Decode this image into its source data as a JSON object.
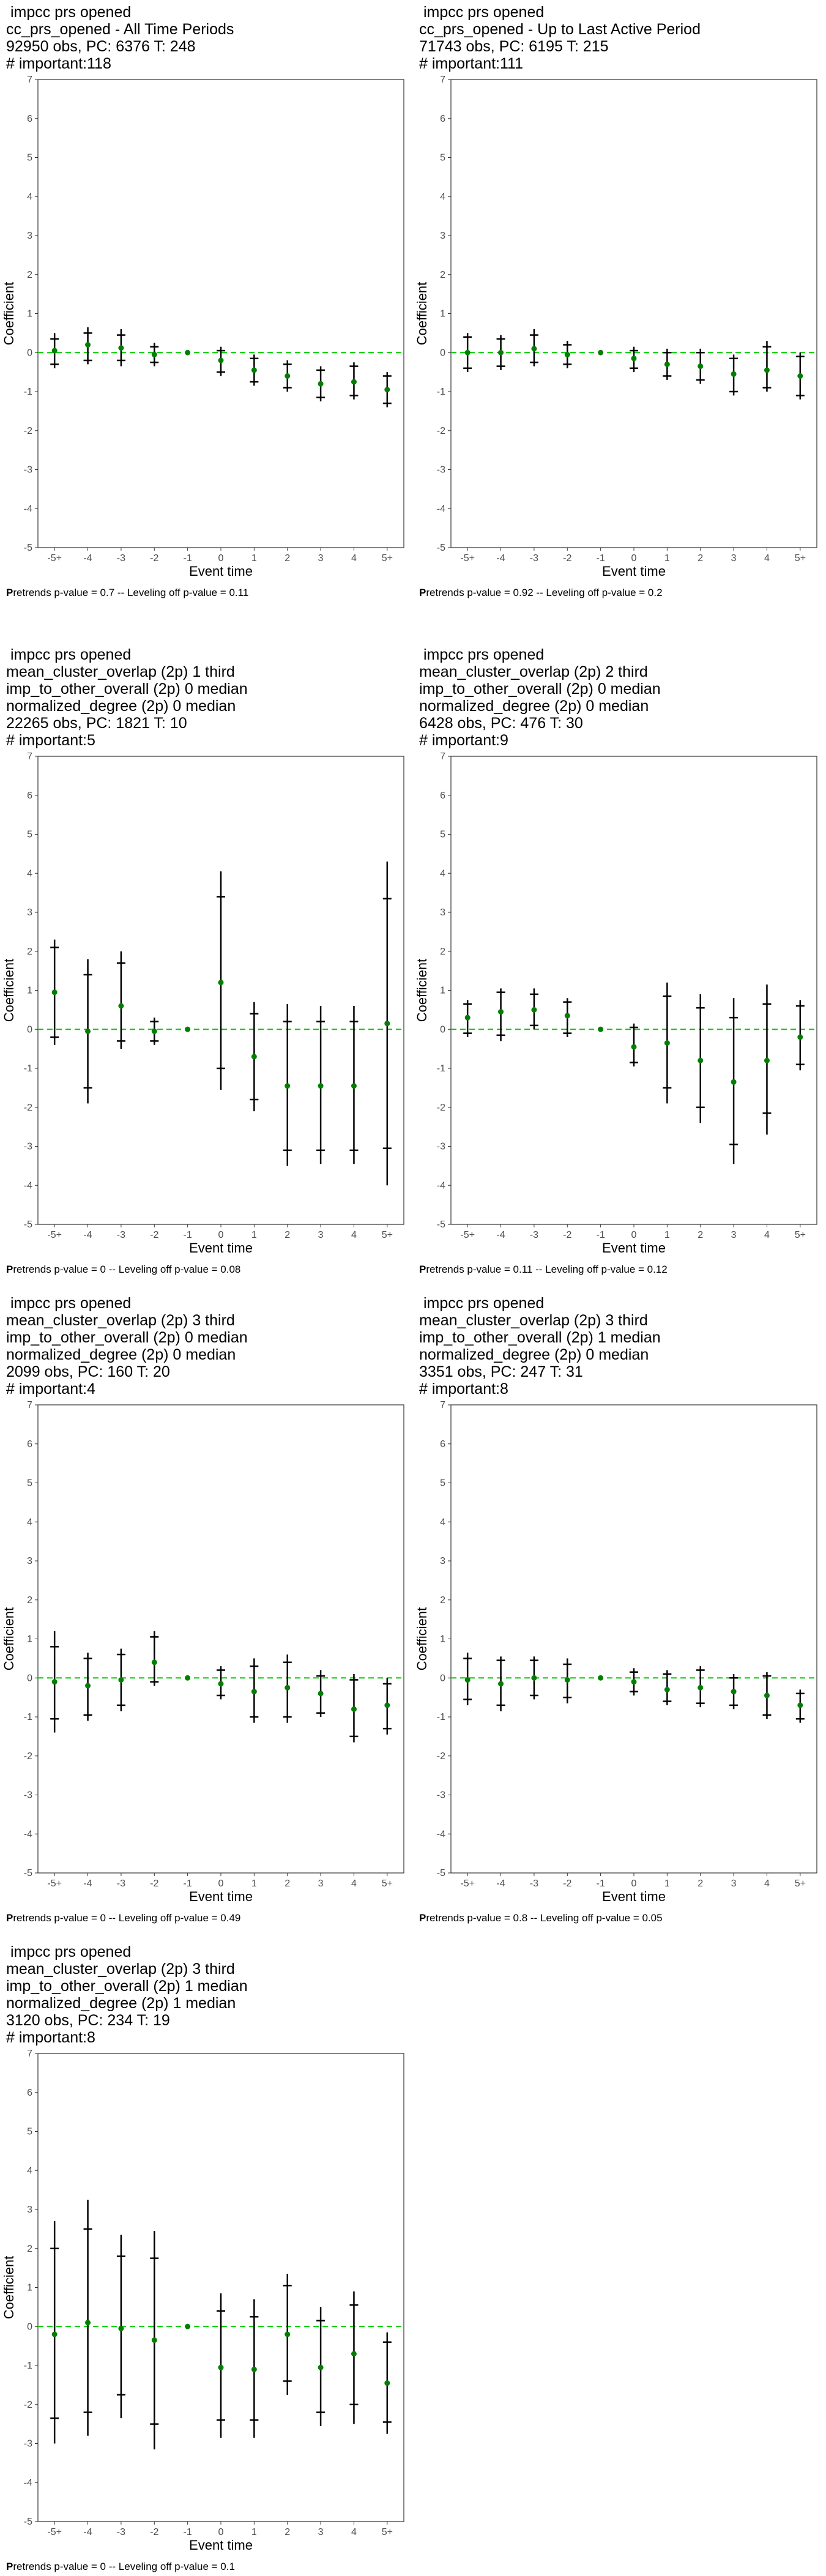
{
  "chart_data": [
    {
      "type": "scatter",
      "title_lines": [
        " impcc prs opened",
        "cc_prs_opened - All Time Periods",
        "92950 obs, PC: 6376 T: 248",
        "# important:118"
      ],
      "xlabel": "Event time",
      "ylabel": "Coefficient",
      "categories": [
        "-5+",
        "-4",
        "-3",
        "-2",
        "-1",
        "0",
        "1",
        "2",
        "3",
        "4",
        "5+"
      ],
      "ylim": [
        -5,
        7
      ],
      "y_ticks": [
        -5,
        -4,
        -3,
        -2,
        -1,
        0,
        1,
        2,
        3,
        4,
        5,
        6,
        7
      ],
      "reference_line": 0,
      "estimates": [
        0.05,
        0.2,
        0.12,
        -0.05,
        0,
        -0.2,
        -0.45,
        -0.6,
        -0.8,
        -0.75,
        -0.95
      ],
      "ci95": [
        [
          -0.4,
          0.5
        ],
        [
          -0.3,
          0.65
        ],
        [
          -0.35,
          0.6
        ],
        [
          -0.35,
          0.25
        ],
        [
          0,
          0
        ],
        [
          -0.6,
          0.15
        ],
        [
          -0.85,
          -0.05
        ],
        [
          -1.0,
          -0.2
        ],
        [
          -1.25,
          -0.35
        ],
        [
          -1.2,
          -0.25
        ],
        [
          -1.4,
          -0.5
        ]
      ],
      "ci90": [
        [
          -0.3,
          0.35
        ],
        [
          -0.2,
          0.5
        ],
        [
          -0.2,
          0.45
        ],
        [
          -0.25,
          0.15
        ],
        [
          0,
          0
        ],
        [
          -0.5,
          0.05
        ],
        [
          -0.75,
          -0.15
        ],
        [
          -0.9,
          -0.3
        ],
        [
          -1.15,
          -0.45
        ],
        [
          -1.1,
          -0.35
        ],
        [
          -1.3,
          -0.6
        ]
      ],
      "caption_prefix": "P",
      "caption_rest": "retrends p-value = 0.7 -- Leveling off p-value = 0.11",
      "colors": {
        "point": "#008000",
        "ref_line": "#00cc00",
        "bar": "#000000"
      }
    },
    {
      "type": "scatter",
      "title_lines": [
        " impcc prs opened",
        "cc_prs_opened - Up to Last Active Period",
        "71743 obs, PC: 6195 T: 215",
        "# important:111"
      ],
      "xlabel": "Event time",
      "ylabel": "Coefficient",
      "categories": [
        "-5+",
        "-4",
        "-3",
        "-2",
        "-1",
        "0",
        "1",
        "2",
        "3",
        "4",
        "5+"
      ],
      "ylim": [
        -5,
        7
      ],
      "y_ticks": [
        -5,
        -4,
        -3,
        -2,
        -1,
        0,
        1,
        2,
        3,
        4,
        5,
        6,
        7
      ],
      "reference_line": 0,
      "estimates": [
        0.0,
        0.0,
        0.1,
        -0.05,
        0,
        -0.15,
        -0.3,
        -0.35,
        -0.55,
        -0.45,
        -0.6
      ],
      "ci95": [
        [
          -0.5,
          0.5
        ],
        [
          -0.45,
          0.45
        ],
        [
          -0.35,
          0.6
        ],
        [
          -0.4,
          0.3
        ],
        [
          0,
          0
        ],
        [
          -0.5,
          0.15
        ],
        [
          -0.7,
          0.1
        ],
        [
          -0.8,
          0.1
        ],
        [
          -1.1,
          -0.05
        ],
        [
          -1.0,
          0.3
        ],
        [
          -1.2,
          0.0
        ]
      ],
      "ci90": [
        [
          -0.4,
          0.4
        ],
        [
          -0.35,
          0.35
        ],
        [
          -0.25,
          0.45
        ],
        [
          -0.3,
          0.2
        ],
        [
          0,
          0
        ],
        [
          -0.4,
          0.05
        ],
        [
          -0.6,
          0.0
        ],
        [
          -0.7,
          0.0
        ],
        [
          -1.0,
          -0.15
        ],
        [
          -0.9,
          0.15
        ],
        [
          -1.1,
          -0.1
        ]
      ],
      "caption_prefix": "P",
      "caption_rest": "retrends p-value = 0.92 -- Leveling off p-value = 0.2",
      "colors": {
        "point": "#008000",
        "ref_line": "#00cc00",
        "bar": "#000000"
      }
    },
    {
      "type": "scatter",
      "title_lines": [
        " impcc prs opened",
        "mean_cluster_overlap (2p) 1 third",
        "imp_to_other_overall (2p) 0 median",
        "normalized_degree (2p) 0 median",
        "22265 obs, PC: 1821 T: 10",
        "# important:5"
      ],
      "xlabel": "Event time",
      "ylabel": "Coefficient",
      "categories": [
        "-5+",
        "-4",
        "-3",
        "-2",
        "-1",
        "0",
        "1",
        "2",
        "3",
        "4",
        "5+"
      ],
      "ylim": [
        -5,
        7
      ],
      "y_ticks": [
        -5,
        -4,
        -3,
        -2,
        -1,
        0,
        1,
        2,
        3,
        4,
        5,
        6,
        7
      ],
      "reference_line": 0,
      "estimates": [
        0.95,
        -0.05,
        0.6,
        -0.05,
        0,
        1.2,
        -0.7,
        -1.45,
        -1.45,
        -1.45,
        0.15
      ],
      "ci95": [
        [
          -0.4,
          2.3
        ],
        [
          -1.9,
          1.8
        ],
        [
          -0.5,
          2.0
        ],
        [
          -0.4,
          0.3
        ],
        [
          0,
          0
        ],
        [
          -1.55,
          4.05
        ],
        [
          -2.1,
          0.7
        ],
        [
          -3.5,
          0.65
        ],
        [
          -3.45,
          0.6
        ],
        [
          -3.45,
          0.6
        ],
        [
          -4.0,
          4.3
        ]
      ],
      "ci90": [
        [
          -0.2,
          2.1
        ],
        [
          -1.5,
          1.4
        ],
        [
          -0.3,
          1.7
        ],
        [
          -0.3,
          0.2
        ],
        [
          0,
          0
        ],
        [
          -1.0,
          3.4
        ],
        [
          -1.8,
          0.4
        ],
        [
          -3.1,
          0.2
        ],
        [
          -3.1,
          0.2
        ],
        [
          -3.1,
          0.2
        ],
        [
          -3.05,
          3.35
        ]
      ],
      "caption_prefix": "P",
      "caption_rest": "retrends p-value = 0 -- Leveling off p-value = 0.08",
      "colors": {
        "point": "#008000",
        "ref_line": "#00cc00",
        "bar": "#000000"
      }
    },
    {
      "type": "scatter",
      "title_lines": [
        " impcc prs opened",
        "mean_cluster_overlap (2p) 2 third",
        "imp_to_other_overall (2p) 0 median",
        "normalized_degree (2p) 0 median",
        "6428 obs, PC: 476 T: 30",
        "# important:9"
      ],
      "xlabel": "Event time",
      "ylabel": "Coefficient",
      "categories": [
        "-5+",
        "-4",
        "-3",
        "-2",
        "-1",
        "0",
        "1",
        "2",
        "3",
        "4",
        "5+"
      ],
      "ylim": [
        -5,
        7
      ],
      "y_ticks": [
        -5,
        -4,
        -3,
        -2,
        -1,
        0,
        1,
        2,
        3,
        4,
        5,
        6,
        7
      ],
      "reference_line": 0,
      "estimates": [
        0.3,
        0.45,
        0.5,
        0.35,
        0,
        -0.45,
        -0.35,
        -0.8,
        -1.35,
        -0.8,
        -0.2
      ],
      "ci95": [
        [
          -0.2,
          0.75
        ],
        [
          -0.3,
          1.05
        ],
        [
          0.0,
          1.05
        ],
        [
          -0.2,
          0.8
        ],
        [
          0,
          0
        ],
        [
          -0.95,
          0.15
        ],
        [
          -1.9,
          1.2
        ],
        [
          -2.4,
          0.9
        ],
        [
          -3.45,
          0.8
        ],
        [
          -2.7,
          1.15
        ],
        [
          -1.05,
          0.75
        ]
      ],
      "ci90": [
        [
          -0.1,
          0.65
        ],
        [
          -0.15,
          0.95
        ],
        [
          0.1,
          0.9
        ],
        [
          -0.1,
          0.7
        ],
        [
          0,
          0
        ],
        [
          -0.85,
          0.05
        ],
        [
          -1.5,
          0.85
        ],
        [
          -2.0,
          0.55
        ],
        [
          -2.95,
          0.3
        ],
        [
          -2.15,
          0.65
        ],
        [
          -0.9,
          0.6
        ]
      ],
      "caption_prefix": "P",
      "caption_rest": "retrends p-value = 0.11 -- Leveling off p-value = 0.12",
      "colors": {
        "point": "#008000",
        "ref_line": "#00cc00",
        "bar": "#000000"
      }
    },
    {
      "type": "scatter",
      "title_lines": [
        " impcc prs opened",
        "mean_cluster_overlap (2p) 3 third",
        "imp_to_other_overall (2p) 0 median",
        "normalized_degree (2p) 0 median",
        "2099 obs, PC: 160 T: 20",
        "# important:4"
      ],
      "xlabel": "Event time",
      "ylabel": "Coefficient",
      "categories": [
        "-5+",
        "-4",
        "-3",
        "-2",
        "-1",
        "0",
        "1",
        "2",
        "3",
        "4",
        "5+"
      ],
      "ylim": [
        -5,
        7
      ],
      "y_ticks": [
        -5,
        -4,
        -3,
        -2,
        -1,
        0,
        1,
        2,
        3,
        4,
        5,
        6,
        7
      ],
      "reference_line": 0,
      "estimates": [
        -0.1,
        -0.2,
        -0.05,
        0.4,
        0,
        -0.15,
        -0.35,
        -0.25,
        -0.4,
        -0.8,
        -0.7
      ],
      "ci95": [
        [
          -1.4,
          1.2
        ],
        [
          -1.1,
          0.65
        ],
        [
          -0.85,
          0.75
        ],
        [
          -0.2,
          1.2
        ],
        [
          0,
          0
        ],
        [
          -0.55,
          0.3
        ],
        [
          -1.15,
          0.5
        ],
        [
          -1.15,
          0.6
        ],
        [
          -1.0,
          0.2
        ],
        [
          -1.65,
          0.1
        ],
        [
          -1.45,
          0.0
        ]
      ],
      "ci90": [
        [
          -1.05,
          0.8
        ],
        [
          -0.95,
          0.5
        ],
        [
          -0.7,
          0.6
        ],
        [
          -0.1,
          1.05
        ],
        [
          0,
          0
        ],
        [
          -0.45,
          0.2
        ],
        [
          -1.0,
          0.3
        ],
        [
          -1.0,
          0.4
        ],
        [
          -0.9,
          0.05
        ],
        [
          -1.5,
          -0.05
        ],
        [
          -1.3,
          -0.15
        ]
      ],
      "caption_prefix": "P",
      "caption_rest": "retrends p-value = 0 -- Leveling off p-value = 0.49",
      "colors": {
        "point": "#008000",
        "ref_line": "#00cc00",
        "bar": "#000000"
      }
    },
    {
      "type": "scatter",
      "title_lines": [
        " impcc prs opened",
        "mean_cluster_overlap (2p) 3 third",
        "imp_to_other_overall (2p) 1 median",
        "normalized_degree (2p) 0 median",
        "3351 obs, PC: 247 T: 31",
        "# important:8"
      ],
      "xlabel": "Event time",
      "ylabel": "Coefficient",
      "categories": [
        "-5+",
        "-4",
        "-3",
        "-2",
        "-1",
        "0",
        "1",
        "2",
        "3",
        "4",
        "5+"
      ],
      "ylim": [
        -5,
        7
      ],
      "y_ticks": [
        -5,
        -4,
        -3,
        -2,
        -1,
        0,
        1,
        2,
        3,
        4,
        5,
        6,
        7
      ],
      "reference_line": 0,
      "estimates": [
        -0.05,
        -0.15,
        0.0,
        -0.05,
        0,
        -0.1,
        -0.3,
        -0.25,
        -0.35,
        -0.45,
        -0.7
      ],
      "ci95": [
        [
          -0.7,
          0.65
        ],
        [
          -0.85,
          0.55
        ],
        [
          -0.55,
          0.55
        ],
        [
          -0.65,
          0.5
        ],
        [
          0,
          0
        ],
        [
          -0.45,
          0.25
        ],
        [
          -0.7,
          0.2
        ],
        [
          -0.75,
          0.3
        ],
        [
          -0.8,
          0.1
        ],
        [
          -1.05,
          0.15
        ],
        [
          -1.15,
          -0.3
        ]
      ],
      "ci90": [
        [
          -0.55,
          0.5
        ],
        [
          -0.7,
          0.45
        ],
        [
          -0.45,
          0.45
        ],
        [
          -0.5,
          0.35
        ],
        [
          0,
          0
        ],
        [
          -0.35,
          0.15
        ],
        [
          -0.6,
          0.1
        ],
        [
          -0.65,
          0.2
        ],
        [
          -0.7,
          0.0
        ],
        [
          -0.95,
          0.05
        ],
        [
          -1.05,
          -0.4
        ]
      ],
      "caption_prefix": "P",
      "caption_rest": "retrends p-value = 0.8 -- Leveling off p-value = 0.05",
      "colors": {
        "point": "#008000",
        "ref_line": "#00cc00",
        "bar": "#000000"
      }
    },
    {
      "type": "scatter",
      "title_lines": [
        " impcc prs opened",
        "mean_cluster_overlap (2p) 3 third",
        "imp_to_other_overall (2p) 1 median",
        "normalized_degree (2p) 1 median",
        "3120 obs, PC: 234 T: 19",
        "# important:8"
      ],
      "xlabel": "Event time",
      "ylabel": "Coefficient",
      "categories": [
        "-5+",
        "-4",
        "-3",
        "-2",
        "-1",
        "0",
        "1",
        "2",
        "3",
        "4",
        "5+"
      ],
      "ylim": [
        -5,
        7
      ],
      "y_ticks": [
        -5,
        -4,
        -3,
        -2,
        -1,
        0,
        1,
        2,
        3,
        4,
        5,
        6,
        7
      ],
      "reference_line": 0,
      "estimates": [
        -0.2,
        0.1,
        -0.05,
        -0.35,
        0,
        -1.05,
        -1.1,
        -0.2,
        -1.05,
        -0.7,
        -1.45
      ],
      "ci95": [
        [
          -3.0,
          2.7
        ],
        [
          -2.8,
          3.25
        ],
        [
          -2.35,
          2.35
        ],
        [
          -3.15,
          2.45
        ],
        [
          0,
          0
        ],
        [
          -2.85,
          0.85
        ],
        [
          -2.85,
          0.7
        ],
        [
          -1.75,
          1.35
        ],
        [
          -2.55,
          0.5
        ],
        [
          -2.5,
          0.9
        ],
        [
          -2.75,
          -0.15
        ]
      ],
      "ci90": [
        [
          -2.35,
          2.0
        ],
        [
          -2.2,
          2.5
        ],
        [
          -1.75,
          1.8
        ],
        [
          -2.5,
          1.75
        ],
        [
          0,
          0
        ],
        [
          -2.4,
          0.4
        ],
        [
          -2.4,
          0.25
        ],
        [
          -1.4,
          1.05
        ],
        [
          -2.2,
          0.15
        ],
        [
          -2.0,
          0.55
        ],
        [
          -2.45,
          -0.4
        ]
      ],
      "caption_prefix": "P",
      "caption_rest": "retrends p-value = 0 -- Leveling off p-value = 0.1",
      "colors": {
        "point": "#008000",
        "ref_line": "#00cc00",
        "bar": "#000000"
      }
    }
  ]
}
